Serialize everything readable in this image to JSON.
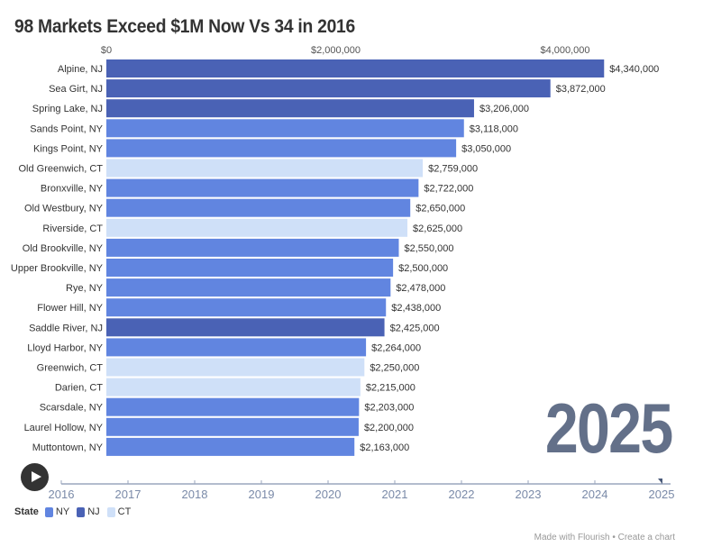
{
  "title": "98 Markets Exceed $1M Now Vs 34 in 2016",
  "current_year": "2025",
  "legend": {
    "title": "State",
    "items": [
      {
        "label": "NY",
        "color": "#6185e0"
      },
      {
        "label": "NJ",
        "color": "#4a62b5"
      },
      {
        "label": "CT",
        "color": "#cfe0f8"
      }
    ]
  },
  "footer": {
    "made_with": "Made with Flourish",
    "separator": "•",
    "create": "Create a chart"
  },
  "timeline": {
    "years": [
      "2016",
      "2017",
      "2018",
      "2019",
      "2020",
      "2021",
      "2022",
      "2023",
      "2024",
      "2025"
    ],
    "current": "2025"
  },
  "chart_data": {
    "type": "bar",
    "orientation": "horizontal",
    "title": "98 Markets Exceed $1M Now Vs 34 in 2016",
    "xlabel": "",
    "ylabel": "",
    "xlim": [
      0,
      4340000
    ],
    "x_ticks": [
      {
        "value": 0,
        "label": "$0"
      },
      {
        "value": 2000000,
        "label": "$2,000,000"
      },
      {
        "value": 4000000,
        "label": "$4,000,000"
      }
    ],
    "legend_position": "bottom-left",
    "categories": [
      "Alpine, NJ",
      "Sea Girt, NJ",
      "Spring Lake, NJ",
      "Sands Point, NY",
      "Kings Point, NY",
      "Old Greenwich, CT",
      "Bronxville, NY",
      "Old Westbury, NY",
      "Riverside, CT",
      "Old Brookville, NY",
      "Upper Brookville, NY",
      "Rye, NY",
      "Flower Hill, NY",
      "Saddle River, NJ",
      "Lloyd Harbor, NY",
      "Greenwich, CT",
      "Darien, CT",
      "Scarsdale, NY",
      "Laurel Hollow, NY",
      "Muttontown, NY"
    ],
    "states": [
      "NJ",
      "NJ",
      "NJ",
      "NY",
      "NY",
      "CT",
      "NY",
      "NY",
      "CT",
      "NY",
      "NY",
      "NY",
      "NY",
      "NJ",
      "NY",
      "CT",
      "CT",
      "NY",
      "NY",
      "NY"
    ],
    "values": [
      4340000,
      3872000,
      3206000,
      3118000,
      3050000,
      2759000,
      2722000,
      2650000,
      2625000,
      2550000,
      2500000,
      2478000,
      2438000,
      2425000,
      2264000,
      2250000,
      2215000,
      2203000,
      2200000,
      2163000
    ],
    "value_labels": [
      "$4,340,000",
      "$3,872,000",
      "$3,206,000",
      "$3,118,000",
      "$3,050,000",
      "$2,759,000",
      "$2,722,000",
      "$2,650,000",
      "$2,625,000",
      "$2,550,000",
      "$2,500,000",
      "$2,478,000",
      "$2,438,000",
      "$2,425,000",
      "$2,264,000",
      "$2,250,000",
      "$2,215,000",
      "$2,203,000",
      "$2,200,000",
      "$2,163,000"
    ]
  }
}
